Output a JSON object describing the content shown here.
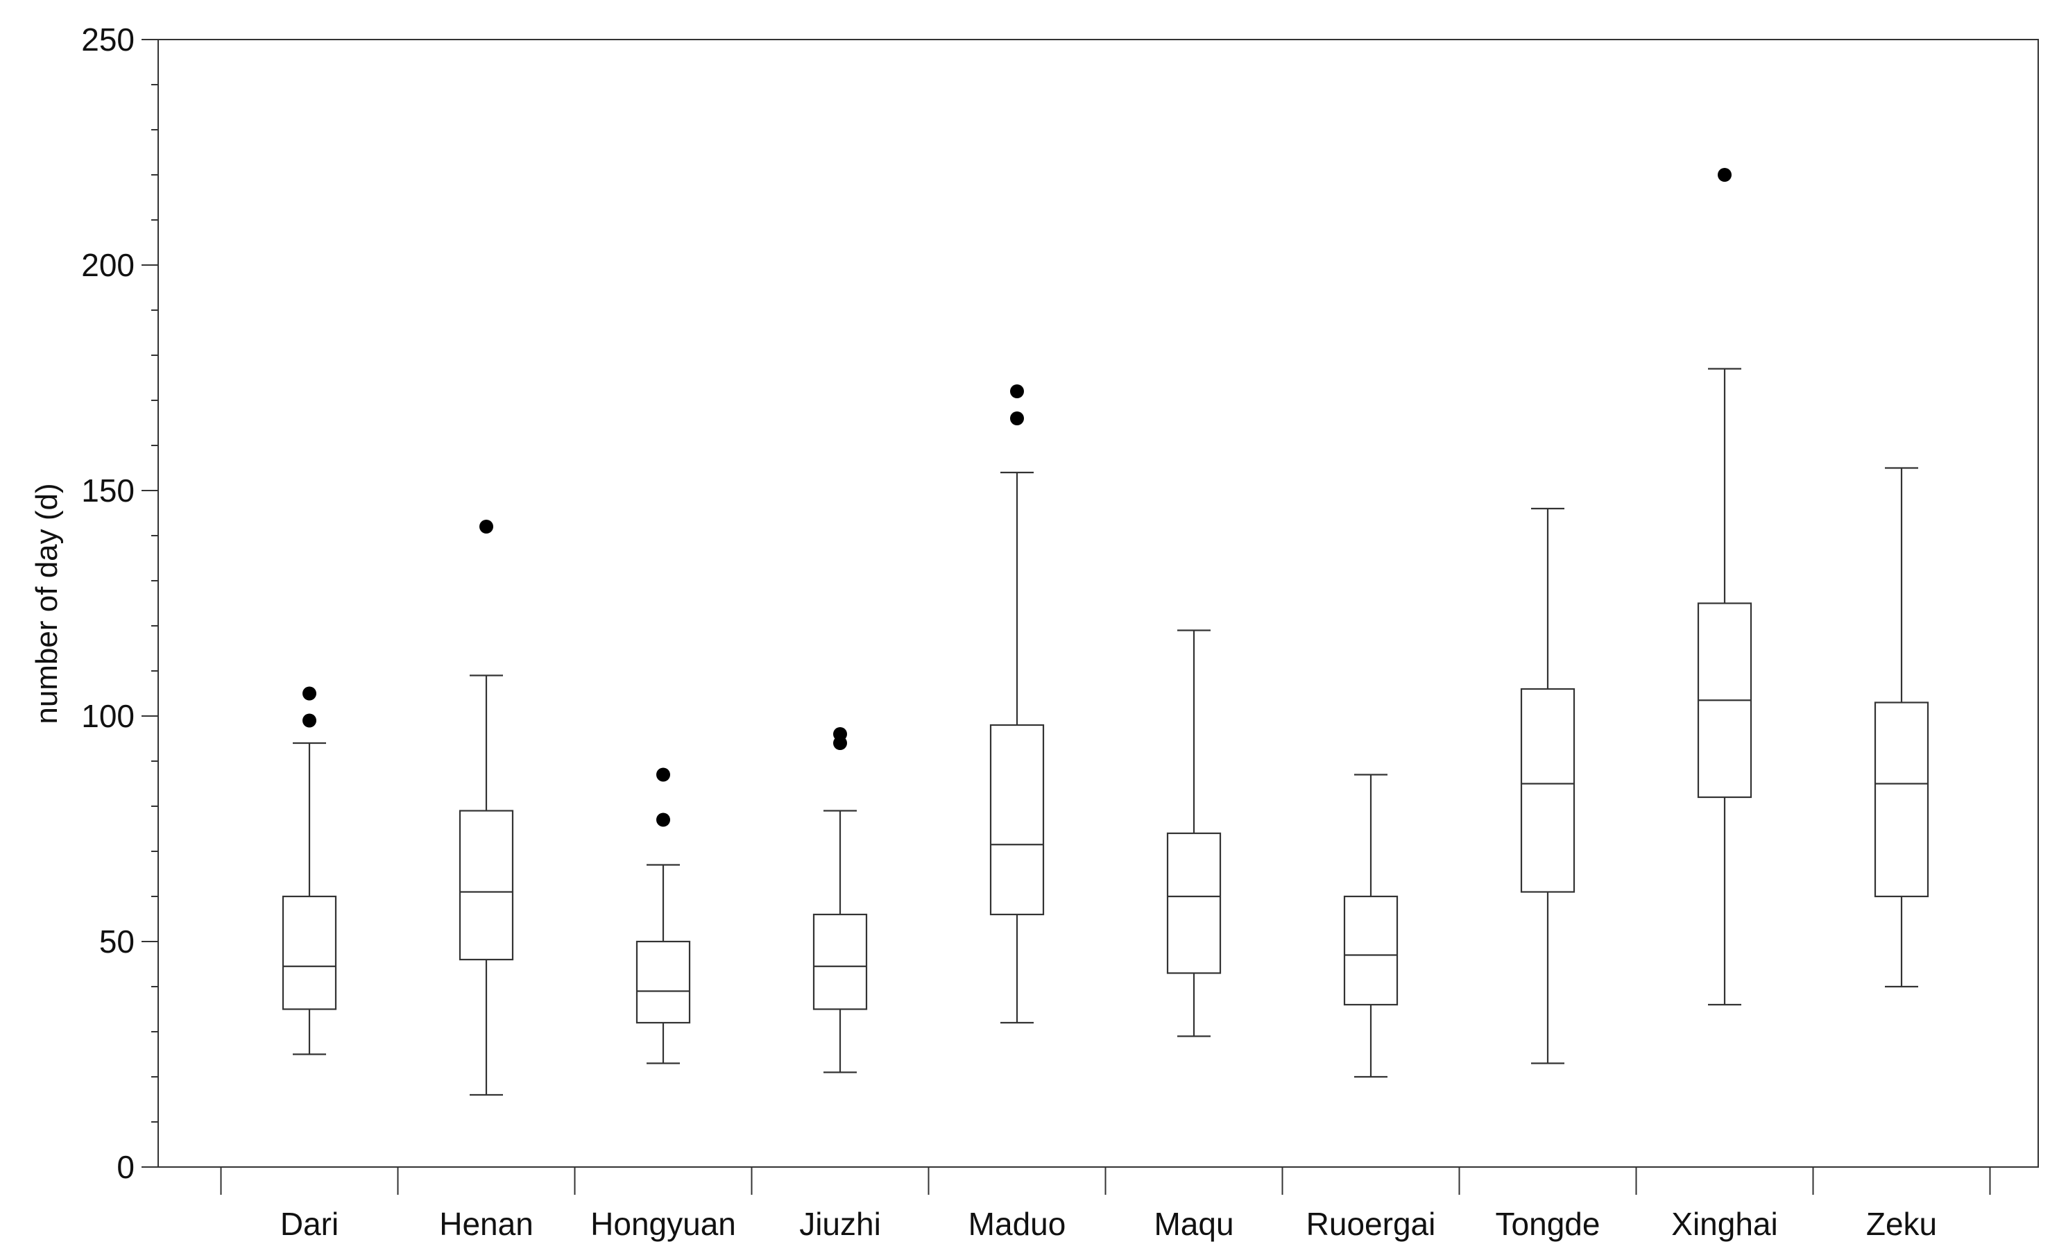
{
  "chart_data": {
    "type": "box",
    "title": "",
    "xlabel": "",
    "ylabel": "number of day (d)",
    "ylim": [
      0,
      250
    ],
    "yticks": [
      0,
      50,
      100,
      150,
      200,
      250
    ],
    "grid": false,
    "legend": "none",
    "categories": [
      "Dari",
      "Henan",
      "Hongyuan",
      "Jiuzhi",
      "Maduo",
      "Maqu",
      "Ruoergai",
      "Tongde",
      "Xinghai",
      "Zeku"
    ],
    "series": [
      {
        "boxes": [
          {
            "min": 25,
            "q1": 35,
            "median": 44.5,
            "q3": 60,
            "max": 94,
            "outliers": [
              99,
              105
            ]
          },
          {
            "min": 16,
            "q1": 46,
            "median": 61,
            "q3": 79,
            "max": 109,
            "outliers": [
              142
            ]
          },
          {
            "min": 23,
            "q1": 32,
            "median": 39,
            "q3": 50,
            "max": 67,
            "outliers": [
              77,
              87
            ]
          },
          {
            "min": 21,
            "q1": 35,
            "median": 44.5,
            "q3": 56,
            "max": 79,
            "outliers": [
              94,
              96
            ]
          },
          {
            "min": 32,
            "q1": 56,
            "median": 71.5,
            "q3": 98,
            "max": 154,
            "outliers": [
              166,
              172
            ]
          },
          {
            "min": 29,
            "q1": 43,
            "median": 60,
            "q3": 74,
            "max": 119,
            "outliers": []
          },
          {
            "min": 20,
            "q1": 36,
            "median": 47,
            "q3": 60,
            "max": 87,
            "outliers": []
          },
          {
            "min": 23,
            "q1": 61,
            "median": 85,
            "q3": 106,
            "max": 146,
            "outliers": []
          },
          {
            "min": 36,
            "q1": 82,
            "median": 103.5,
            "q3": 125,
            "max": 177,
            "outliers": [
              220
            ]
          },
          {
            "min": 40,
            "q1": 60,
            "median": 85,
            "q3": 103,
            "max": 155,
            "outliers": []
          }
        ]
      }
    ],
    "colors": {
      "stroke": "#333333",
      "outlier": "#000000",
      "frame": "#333333"
    }
  }
}
